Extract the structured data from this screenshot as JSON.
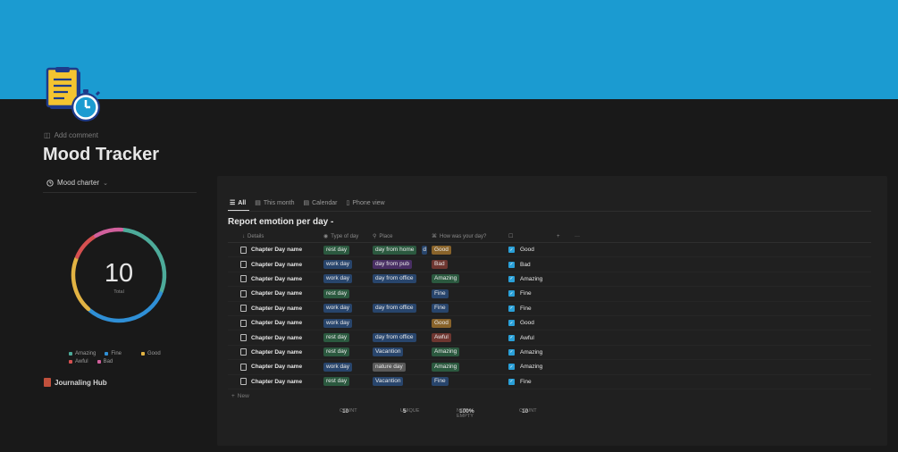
{
  "page": {
    "icon": "stopwatch-document-icon",
    "add_comment": "Add comment",
    "title": "Mood Tracker"
  },
  "chart_view": {
    "label": "Mood charter",
    "donut": {
      "total_value": "10",
      "total_label": "Total",
      "segments": [
        {
          "name": "Amazing",
          "value": 3,
          "color": "#4dab9a"
        },
        {
          "name": "Fine",
          "value": 3,
          "color": "#2f8fd6"
        },
        {
          "name": "Good",
          "value": 2,
          "color": "#e2b343"
        },
        {
          "name": "Awful",
          "value": 1,
          "color": "#d65050"
        },
        {
          "name": "Bad",
          "value": 1,
          "color": "#d1609c"
        }
      ]
    },
    "legend": [
      {
        "label": "Amazing",
        "color": "#4dab9a"
      },
      {
        "label": "Fine",
        "color": "#2f8fd6"
      },
      {
        "label": "Good",
        "color": "#e2b343"
      },
      {
        "label": "Awful",
        "color": "#d65050"
      },
      {
        "label": "Bad",
        "color": "#d1609c"
      }
    ]
  },
  "link": {
    "label": "Journaling Hub",
    "icon": "book-icon"
  },
  "database": {
    "views": [
      {
        "label": "All",
        "icon": "list-icon",
        "active": true
      },
      {
        "label": "This month",
        "icon": "calendar-icon"
      },
      {
        "label": "Calendar",
        "icon": "calendar-icon"
      },
      {
        "label": "Phone view",
        "icon": "phone-icon"
      }
    ],
    "title": "Report emotion per day -",
    "columns": {
      "details": "Details",
      "type": "Type of day",
      "place": "Place",
      "how": "How was your day?",
      "add": "+",
      "more": "···"
    },
    "rows": [
      {
        "name": "Chapter Day name",
        "type": "rest day",
        "place": "day from home",
        "place_extra": "d",
        "how": "Good",
        "check": "Good"
      },
      {
        "name": "Chapter Day name",
        "type": "work day",
        "place": "day from pub",
        "how": "Bad",
        "check": "Bad"
      },
      {
        "name": "Chapter Day name",
        "type": "work day",
        "place": "day from office",
        "how": "Amazing",
        "check": "Amazing"
      },
      {
        "name": "Chapter Day name",
        "type": "rest day",
        "place": "",
        "how": "Fine",
        "check": "Fine"
      },
      {
        "name": "Chapter Day name",
        "type": "work day",
        "place": "day from office",
        "how": "Fine",
        "check": "Fine"
      },
      {
        "name": "Chapter Day name",
        "type": "work day",
        "place": "",
        "how": "Good",
        "check": "Good"
      },
      {
        "name": "Chapter Day name",
        "type": "rest day",
        "place": "day from office",
        "how": "Awful",
        "check": "Awful"
      },
      {
        "name": "Chapter Day name",
        "type": "rest day",
        "place": "Vacantion",
        "how": "Amazing",
        "check": "Amazing"
      },
      {
        "name": "Chapter Day name",
        "type": "work day",
        "place": "nature day",
        "how": "Amazing",
        "check": "Amazing"
      },
      {
        "name": "Chapter Day name",
        "type": "rest day",
        "place": "Vacantion",
        "how": "Fine",
        "check": "Fine"
      }
    ],
    "new_label": "New",
    "calculations": [
      {
        "label": "COUNT",
        "value": "10"
      },
      {
        "label": "UNIQUE",
        "value": "5"
      },
      {
        "label": "NOT EMPTY",
        "value": "100%"
      },
      {
        "label": "COUNT",
        "value": "10"
      }
    ],
    "tag_colors": {
      "rest day": "green",
      "work day": "blue",
      "day from home": "green",
      "day from pub": "purple",
      "day from office": "blue",
      "Vacantion": "blue",
      "nature day": "gray",
      "Good": "orange",
      "Bad": "red",
      "Amazing": "green",
      "Fine": "blue",
      "Awful": "red"
    }
  }
}
